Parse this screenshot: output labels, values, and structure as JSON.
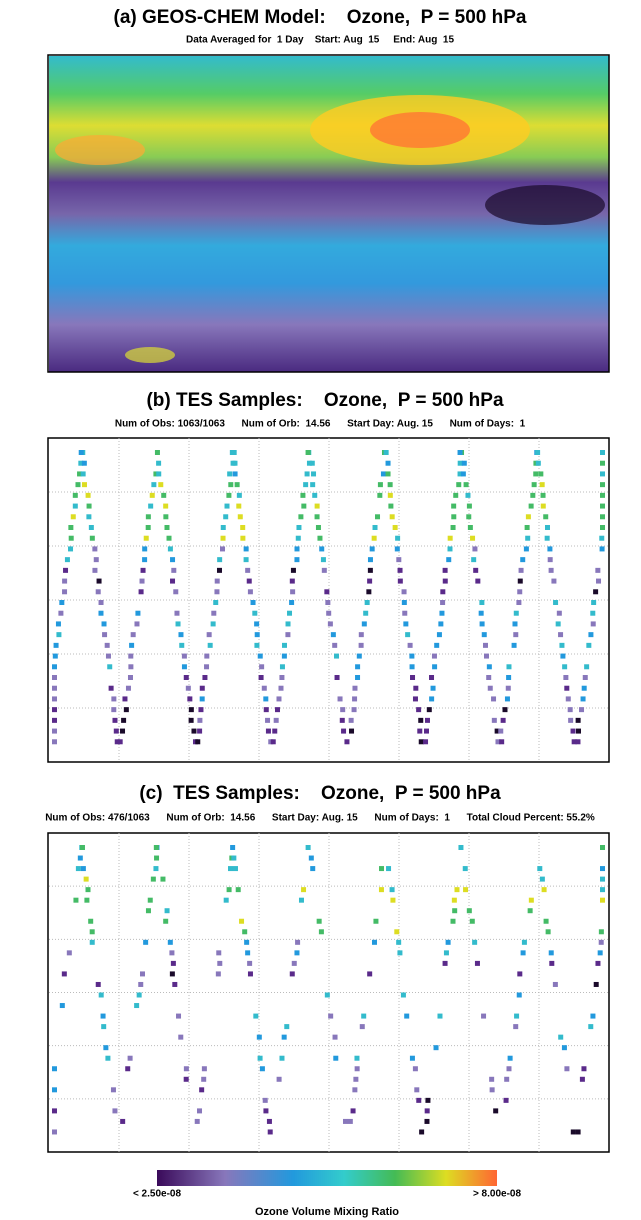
{
  "panels": [
    {
      "title": "(a) GEOS-CHEM Model:    Ozone,  P = 500 hPa",
      "subtitle": "Data Averaged for  1 Day    Start: Aug  15     End: Aug  15"
    },
    {
      "title": "(b) TES Samples:    Ozone,  P = 500 hPa",
      "subtitle": "Num of Obs: 1063/1063      Num of Orb:  14.56      Start Day: Aug. 15      Num of Days:  1"
    },
    {
      "title": "(c)  TES Samples:    Ozone,  P = 500 hPa",
      "subtitle": "Num of Obs: 476/1063      Num of Orb:  14.56      Start Day: Aug. 15      Num of Days:  1      Total Cloud Percent: 55.2%"
    }
  ],
  "colorbar": {
    "min_label": "< 2.50e-08",
    "max_label": "> 8.00e-08",
    "title": "Ozone Volume Mixing Ratio"
  }
}
